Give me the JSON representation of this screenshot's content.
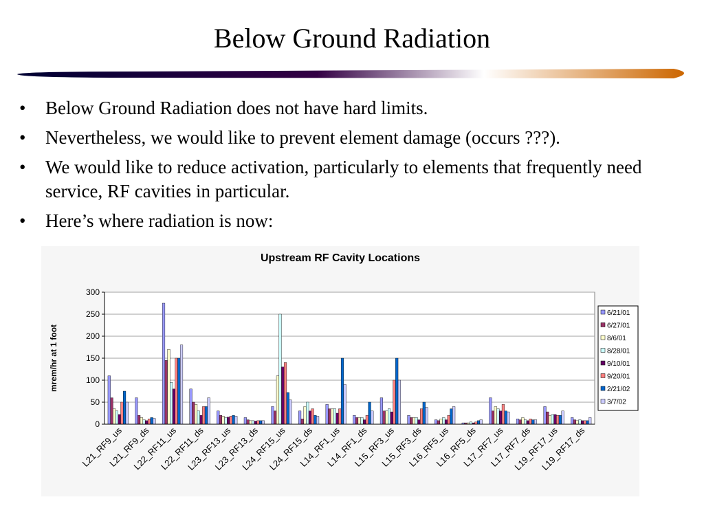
{
  "title": "Below Ground Radiation",
  "bullets": [
    "Below Ground Radiation does not have hard limits.",
    "Nevertheless, we would like to prevent element damage (occurs ???).",
    "We would like to reduce activation, particularly to elements that frequently need service, RF cavities in particular.",
    "Here’s where radiation is now:"
  ],
  "chart_data": {
    "type": "bar",
    "title": "Upstream RF Cavity Locations",
    "y_label": "mrem/hr at 1 foot",
    "categories": [
      "L21_RF9_us",
      "L21_RF9_ds",
      "L22_RF11_us",
      "L22_RF11_ds",
      "L23_RF13_us",
      "L23_RF13_ds",
      "L24_RF15_us",
      "L24_RF15_ds",
      "L14_RF1_us",
      "L14_RF1_ds",
      "L15_RF3_us",
      "L15_RF3_ds",
      "L16_RF5_us",
      "L16_RF5_ds",
      "L17_RF7_us",
      "L17_RF7_ds",
      "L19_RF17_us",
      "L19_RF17_ds"
    ],
    "series": [
      {
        "name": "6/21/01",
        "color": "#9999ff",
        "values": [
          110,
          60,
          275,
          80,
          30,
          15,
          40,
          30,
          45,
          20,
          60,
          20,
          10,
          3,
          60,
          12,
          40,
          15
        ]
      },
      {
        "name": "6/27/01",
        "color": "#993366",
        "values": [
          60,
          20,
          145,
          50,
          20,
          10,
          30,
          12,
          35,
          15,
          30,
          15,
          8,
          3,
          30,
          10,
          28,
          10
        ]
      },
      {
        "name": "8/6/01",
        "color": "#ffffcc",
        "values": [
          35,
          15,
          170,
          45,
          18,
          8,
          110,
          40,
          35,
          15,
          30,
          15,
          12,
          3,
          40,
          15,
          20,
          8
        ]
      },
      {
        "name": "8/28/01",
        "color": "#ccffff",
        "values": [
          30,
          10,
          95,
          30,
          15,
          8,
          250,
          50,
          35,
          15,
          35,
          15,
          15,
          5,
          35,
          10,
          22,
          10
        ]
      },
      {
        "name": "9/10/01",
        "color": "#660066",
        "values": [
          22,
          8,
          80,
          20,
          16,
          7,
          130,
          30,
          25,
          10,
          28,
          10,
          10,
          3,
          30,
          8,
          22,
          8
        ]
      },
      {
        "name": "9/20/01",
        "color": "#ff8080",
        "values": [
          50,
          12,
          150,
          40,
          18,
          8,
          140,
          35,
          35,
          20,
          100,
          35,
          20,
          5,
          45,
          12,
          20,
          8
        ]
      },
      {
        "name": "2/21/02",
        "color": "#0066cc",
        "values": [
          75,
          15,
          150,
          40,
          20,
          8,
          72,
          20,
          150,
          50,
          150,
          50,
          35,
          8,
          30,
          10,
          20,
          8
        ]
      },
      {
        "name": "3/7/02",
        "color": "#ccccff",
        "values": [
          50,
          13,
          180,
          60,
          18,
          8,
          55,
          18,
          90,
          30,
          100,
          38,
          40,
          10,
          28,
          10,
          30,
          15
        ]
      }
    ],
    "ylim": [
      0,
      300
    ],
    "yticks": [
      0,
      50,
      100,
      150,
      200,
      250,
      300
    ],
    "grid": true,
    "legend": "right"
  }
}
